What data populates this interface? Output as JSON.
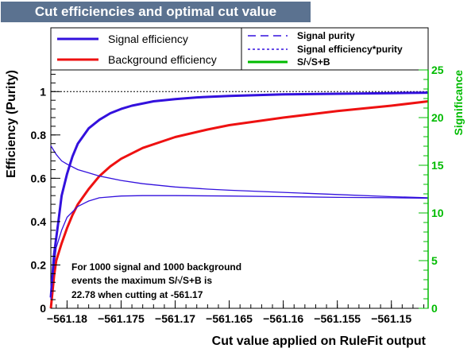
{
  "title": "Cut efficiencies and optimal cut value",
  "colors": {
    "title_bg": "#5b7290",
    "signal": "#3311dd",
    "background": "#ee1111",
    "significance": "#00bb00",
    "axis": "#000000"
  },
  "legend": {
    "left": [
      {
        "label": "Signal efficiency",
        "style": "solid-thick",
        "color": "#3311dd"
      },
      {
        "label": "Background efficiency",
        "style": "solid-thick",
        "color": "#ee1111"
      }
    ],
    "right": [
      {
        "label": "Signal purity",
        "style": "dashed",
        "color": "#3311dd"
      },
      {
        "label": "Signal efficiency*purity",
        "style": "dotted",
        "color": "#3311dd"
      },
      {
        "label": "S/√S+B",
        "style": "solid-thick",
        "color": "#00bb00"
      }
    ]
  },
  "annotation": [
    "For 1000 signal and 1000 background",
    "events the maximum S/√S+B is",
    "22.78 when cutting at -561.17"
  ],
  "chart_data": {
    "type": "line",
    "xlabel": "Cut value applied on RuleFit output",
    "ylabel": "Efficiency (Purity)",
    "y2label": "Significance",
    "xlim": [
      -561.1815,
      -561.1466
    ],
    "ylim": [
      0,
      1.1
    ],
    "y2lim": [
      0,
      25
    ],
    "x_ticks": [
      -561.18,
      -561.175,
      -561.17,
      -561.165,
      -561.16,
      -561.155,
      -561.15
    ],
    "x_tick_labels": [
      "−561.18",
      "−561.175",
      "−561.17",
      "−561.165",
      "−561.16",
      "−561.155",
      "−561.15"
    ],
    "y_ticks": [
      0,
      0.2,
      0.4,
      0.6,
      0.8,
      1
    ],
    "y_tick_labels": [
      "0",
      "0.2",
      "0.4",
      "0.6",
      "0.8",
      "1"
    ],
    "y2_ticks": [
      0,
      5,
      10,
      15,
      20,
      25
    ],
    "y2_tick_labels": [
      "0",
      "5",
      "10",
      "15",
      "20",
      "25"
    ],
    "reference_line_y": 1,
    "series": [
      {
        "name": "Signal efficiency",
        "axis": "left",
        "style": "solid-thick",
        "color": "#3311dd",
        "x": [
          -561.1815,
          -561.1812,
          -561.1808,
          -561.1805,
          -561.18,
          -561.1795,
          -561.179,
          -561.178,
          -561.177,
          -561.176,
          -561.175,
          -561.174,
          -561.172,
          -561.17,
          -561.168,
          -561.165,
          -561.16,
          -561.155,
          -561.15,
          -561.1466
        ],
        "y": [
          0.05,
          0.25,
          0.4,
          0.52,
          0.62,
          0.7,
          0.76,
          0.83,
          0.87,
          0.9,
          0.92,
          0.935,
          0.955,
          0.965,
          0.973,
          0.98,
          0.987,
          0.99,
          0.993,
          0.995
        ]
      },
      {
        "name": "Background efficiency",
        "axis": "left",
        "style": "solid-thick",
        "color": "#ee1111",
        "x": [
          -561.1815,
          -561.1812,
          -561.181,
          -561.1805,
          -561.18,
          -561.1795,
          -561.179,
          -561.178,
          -561.177,
          -561.176,
          -561.175,
          -561.173,
          -561.17,
          -561.167,
          -561.165,
          -561.16,
          -561.155,
          -561.15,
          -561.1466
        ],
        "y": [
          0.0,
          0.15,
          0.22,
          0.3,
          0.37,
          0.43,
          0.48,
          0.55,
          0.61,
          0.655,
          0.69,
          0.74,
          0.79,
          0.825,
          0.845,
          0.88,
          0.91,
          0.935,
          0.955
        ]
      },
      {
        "name": "Signal purity",
        "axis": "left",
        "style": "thin",
        "color": "#3311dd",
        "x": [
          -561.1815,
          -561.181,
          -561.1805,
          -561.18,
          -561.179,
          -561.178,
          -561.177,
          -561.175,
          -561.173,
          -561.17,
          -561.167,
          -561.165,
          -561.16,
          -561.155,
          -561.15,
          -561.1466
        ],
        "y": [
          0.75,
          0.71,
          0.68,
          0.665,
          0.64,
          0.625,
          0.61,
          0.59,
          0.575,
          0.56,
          0.55,
          0.545,
          0.535,
          0.525,
          0.515,
          0.51
        ]
      },
      {
        "name": "Signal efficiency*purity",
        "axis": "left",
        "style": "thin",
        "color": "#3311dd",
        "x": [
          -561.1815,
          -561.1812,
          -561.181,
          -561.1805,
          -561.18,
          -561.179,
          -561.178,
          -561.177,
          -561.175,
          -561.173,
          -561.17,
          -561.165,
          -561.16,
          -561.155,
          -561.15,
          -561.1466
        ],
        "y": [
          0.04,
          0.2,
          0.28,
          0.36,
          0.42,
          0.47,
          0.495,
          0.51,
          0.518,
          0.52,
          0.52,
          0.518,
          0.515,
          0.512,
          0.51,
          0.508
        ]
      }
    ]
  }
}
